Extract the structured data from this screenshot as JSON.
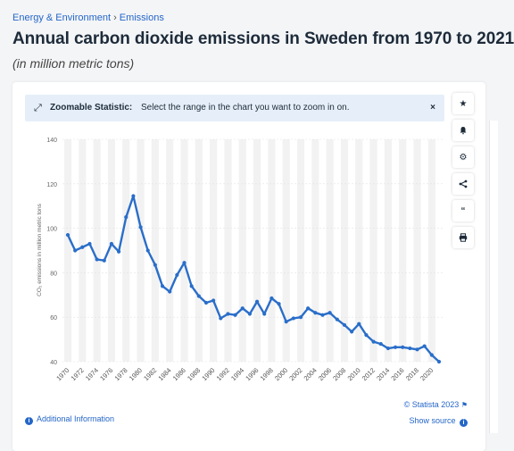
{
  "breadcrumb": {
    "part1": "Energy & Environment",
    "separator": "›",
    "part2": "Emissions"
  },
  "title": "Annual carbon dioxide emissions in Sweden from 1970 to 2021",
  "subtitle": "(in million metric tons)",
  "zoom_banner": {
    "label": "Zoomable Statistic:",
    "text": "Select the range in the chart you want to zoom in on.",
    "close": "×"
  },
  "toolbar": [
    "star-icon",
    "bell-icon",
    "gear-icon",
    "share-icon",
    "quote-icon",
    "print-icon"
  ],
  "footer": {
    "additional_info": "Additional Information",
    "copyright": "© Statista 2023",
    "show_source": "Show source"
  },
  "colors": {
    "line": "#2a6ec9",
    "accent": "#2466c8",
    "band": "#f2f2f2"
  },
  "chart_data": {
    "type": "line",
    "title": "",
    "xlabel": "",
    "ylabel": "CO₂ emissions in million metric tons",
    "ylim": [
      40,
      140
    ],
    "yticks": [
      40,
      60,
      80,
      100,
      120,
      140
    ],
    "xtick_labels": [
      "1970",
      "1972",
      "1974",
      "1976",
      "1978",
      "1980",
      "1982",
      "1984",
      "1986",
      "1988",
      "1990",
      "1992",
      "1994",
      "1996",
      "1998",
      "2000",
      "2002",
      "2004",
      "2006",
      "2008",
      "2010",
      "2012",
      "2014",
      "2016",
      "2018",
      "2020"
    ],
    "grid": true,
    "series": [
      {
        "x": [
          1970,
          1971,
          1972,
          1973,
          1974,
          1975,
          1976,
          1977,
          1978,
          1979,
          1980,
          1981,
          1982,
          1983,
          1984,
          1985,
          1986,
          1987,
          1988,
          1989,
          1990,
          1991,
          1992,
          1993,
          1994,
          1995,
          1996,
          1997,
          1998,
          1999,
          2000,
          2001,
          2002,
          2003,
          2004,
          2005,
          2006,
          2007,
          2008,
          2009,
          2010,
          2011,
          2012,
          2013,
          2014,
          2015,
          2016,
          2017,
          2018,
          2019,
          2020,
          2021
        ],
        "values": [
          97,
          90,
          91.5,
          93,
          86,
          85.5,
          93,
          89.5,
          105,
          114.5,
          100.5,
          90,
          83.5,
          74,
          71.5,
          79,
          84.5,
          74,
          69.5,
          66.5,
          67.5,
          59.5,
          61.5,
          61,
          64,
          61.5,
          67,
          61.5,
          68.5,
          66,
          58,
          59.5,
          60,
          64,
          62,
          61,
          62,
          59,
          56.5,
          53.5,
          57,
          52,
          49,
          48,
          46,
          46.5,
          46.5,
          46,
          45.5,
          47,
          43,
          40
        ]
      }
    ]
  }
}
